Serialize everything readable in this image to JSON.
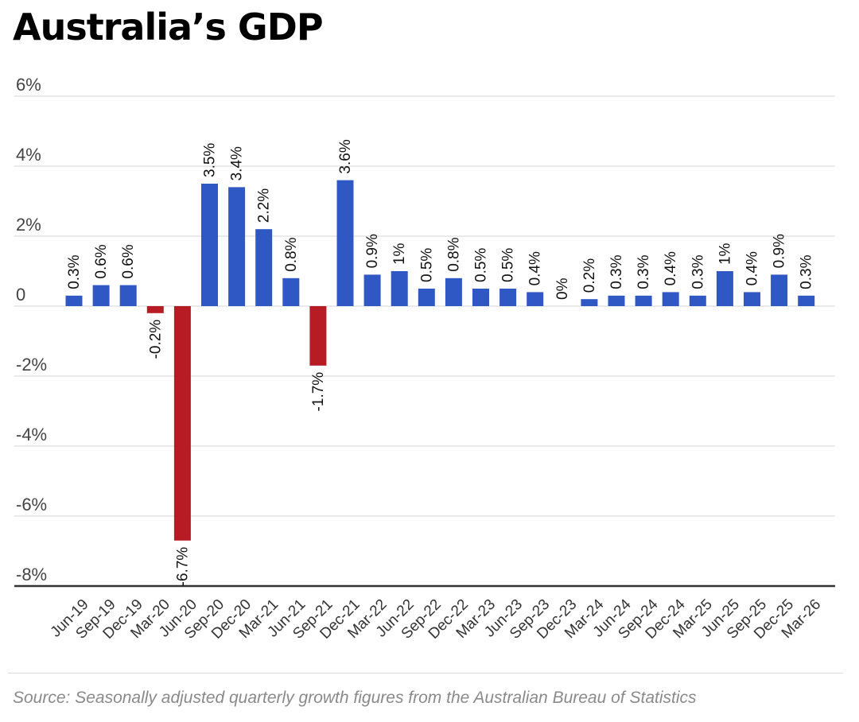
{
  "chart_data": {
    "type": "bar",
    "title": "Australia’s GDP",
    "xlabel": "",
    "ylabel": "",
    "ylim": [
      -8,
      6
    ],
    "y_ticks": [
      {
        "value": 6,
        "label": "6%"
      },
      {
        "value": 4,
        "label": "4%"
      },
      {
        "value": 2,
        "label": "2%"
      },
      {
        "value": 0,
        "label": "0"
      },
      {
        "value": -2,
        "label": "-2%"
      },
      {
        "value": -4,
        "label": "-4%"
      },
      {
        "value": -6,
        "label": "-6%"
      },
      {
        "value": -8,
        "label": "-8%"
      }
    ],
    "grid": true,
    "categories": [
      "Jun-19",
      "Sep-19",
      "Dec-19",
      "Mar-20",
      "Jun-20",
      "Sep-20",
      "Dec-20",
      "Mar-21",
      "Jun-21",
      "Sep-21",
      "Dec-21",
      "Mar-22",
      "Jun-22",
      "Sep-22",
      "Dec-22",
      "Mar-23",
      "Jun-23",
      "Sep-23",
      "Dec-23",
      "Mar-24",
      "Jun-24",
      "Sep-24",
      "Dec-24",
      "Mar-25",
      "Jun-25",
      "Sep-25",
      "Dec-25",
      "Mar-26"
    ],
    "values": [
      0.3,
      0.6,
      0.6,
      -0.2,
      -6.7,
      3.5,
      3.4,
      2.2,
      0.8,
      -1.7,
      3.6,
      0.9,
      1,
      0.5,
      0.8,
      0.5,
      0.5,
      0.4,
      0,
      0.2,
      0.3,
      0.3,
      0.4,
      0.3,
      1,
      0.4,
      0.9,
      0.3
    ],
    "data_labels": [
      "0.3%",
      "0.6%",
      "0.6%",
      "-0.2%",
      "-6.7%",
      "3.5%",
      "3.4%",
      "2.2%",
      "0.8%",
      "-1.7%",
      "3.6%",
      "0.9%",
      "1%",
      "0.5%",
      "0.8%",
      "0.5%",
      "0.5%",
      "0.4%",
      "0%",
      "0.2%",
      "0.3%",
      "0.3%",
      "0.4%",
      "0.3%",
      "1%",
      "0.4%",
      "0.9%",
      "0.3%"
    ],
    "colors": {
      "positive": "#2f58c4",
      "negative": "#b71c24",
      "grid": "#d6d6d6",
      "axis": "#333333"
    }
  },
  "source": "Source: Seasonally adjusted quarterly growth figures from the Australian Bureau of Statistics"
}
